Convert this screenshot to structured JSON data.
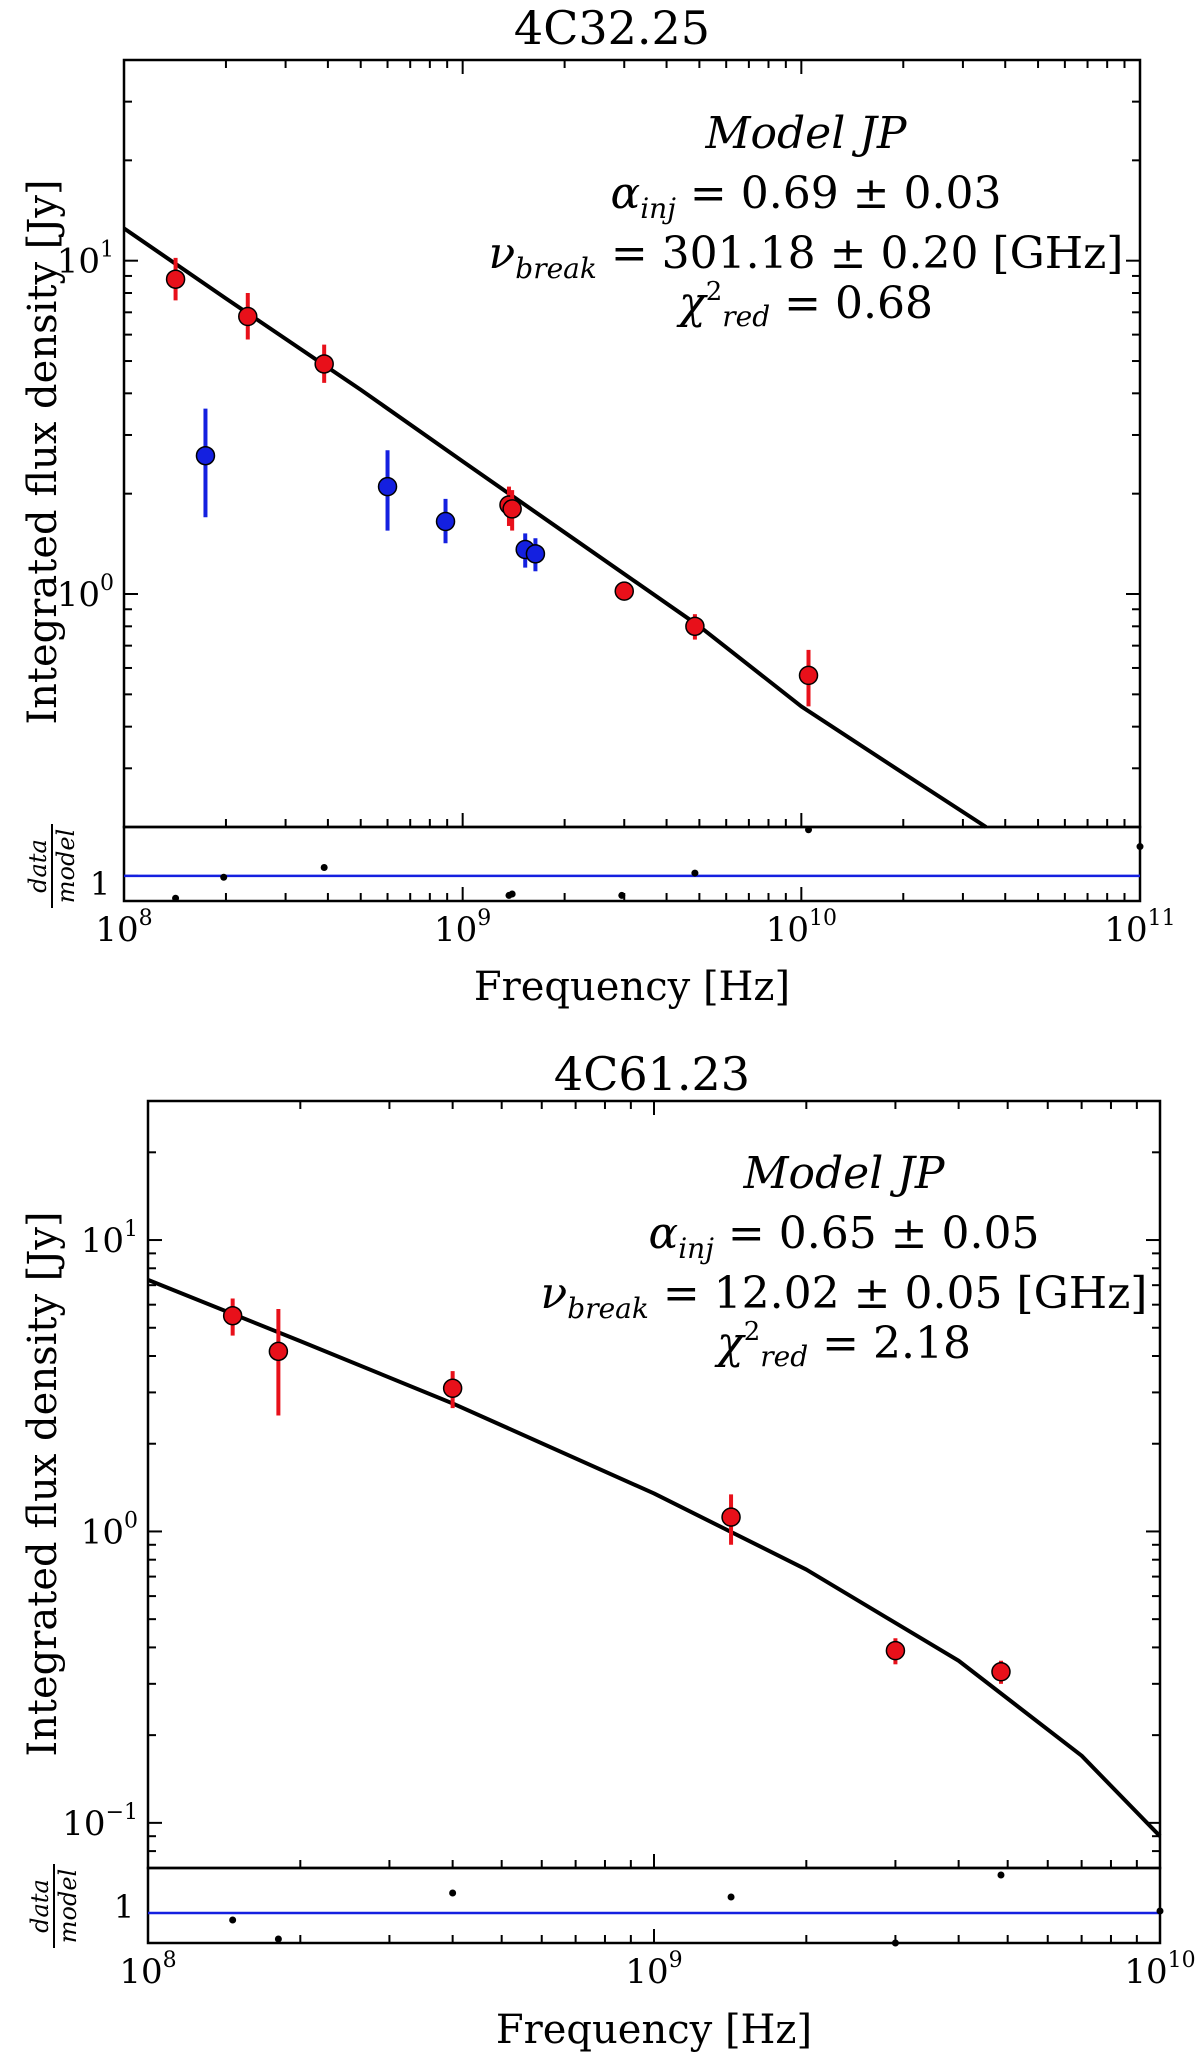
{
  "chart_data": [
    {
      "type": "scatter",
      "title": "4C32.25",
      "xlabel": "Frequency [Hz]",
      "ylabel": "Integrated flux density [Jy]",
      "residual_label": "data/model",
      "residual_label_num": "data",
      "residual_label_den": "model",
      "xscale": "log",
      "yscale": "log",
      "xlim": [
        100000000.0,
        100000000000.0
      ],
      "ylim": [
        0.2,
        40
      ],
      "x_ticks": [
        {
          "value": 100000000.0,
          "base": "10",
          "exp": "8"
        },
        {
          "value": 1000000000.0,
          "base": "10",
          "exp": "9"
        },
        {
          "value": 10000000000.0,
          "base": "10",
          "exp": "10"
        },
        {
          "value": 100000000000.0,
          "base": "10",
          "exp": "11"
        }
      ],
      "y_ticks": [
        {
          "value": 1,
          "base": "10",
          "exp": "0"
        },
        {
          "value": 10,
          "base": "10",
          "exp": "1"
        }
      ],
      "residual_ylim": [
        0.82,
        1.35
      ],
      "residual_tick": {
        "value": 1,
        "label": "1"
      },
      "annotation": {
        "model": "Model JP",
        "alpha_value": "= 0.69 ± 0.03",
        "break_value": "= 301.18 ± 0.20 [GHz]",
        "chi_value": "= 0.68"
      },
      "series": [
        {
          "color": "#e8101a",
          "x": [
            142000000.0,
            232000000.0,
            390000000.0,
            1370000000.0,
            1400000000.0,
            3000000000.0,
            4850000000.0,
            10500000000.0
          ],
          "y": [
            8.8,
            6.8,
            4.9,
            1.85,
            1.8,
            1.02,
            0.8,
            0.57
          ],
          "yerr_low": [
            7.6,
            5.8,
            4.3,
            1.6,
            1.55,
            0.96,
            0.73,
            0.46
          ],
          "yerr_high": [
            10.2,
            8.0,
            5.6,
            2.1,
            2.05,
            1.08,
            0.87,
            0.68
          ]
        },
        {
          "color": "#1420e0",
          "x": [
            174000000.0,
            600000000.0,
            890000000.0,
            1530000000.0,
            1640000000.0
          ],
          "y": [
            2.6,
            2.1,
            1.65,
            1.36,
            1.32
          ],
          "yerr_low": [
            1.7,
            1.55,
            1.42,
            1.2,
            1.17
          ],
          "yerr_high": [
            3.6,
            2.7,
            1.93,
            1.52,
            1.47
          ]
        }
      ],
      "model_curve": {
        "x": [
          100000000.0,
          200000000.0,
          500000000.0,
          1000000000.0,
          2000000000.0,
          5000000000.0,
          10000000000.0,
          20000000000.0,
          47000000000.0
        ],
        "y": [
          12.5,
          7.7,
          4.1,
          2.5,
          1.53,
          0.8,
          0.46,
          0.29,
          0.165
        ]
      },
      "residuals": {
        "x": [
          142000000.0,
          197000000.0,
          390000000.0,
          1370000000.0,
          1400000000.0,
          2950000000.0,
          4850000000.0,
          10500000000.0,
          100000000000.0
        ],
        "y": [
          0.84,
          0.99,
          1.06,
          0.86,
          0.87,
          0.86,
          1.02,
          1.33,
          1.21
        ]
      }
    },
    {
      "type": "scatter",
      "title": "4C61.23",
      "xlabel": "Frequency [Hz]",
      "ylabel": "Integrated flux density [Jy]",
      "residual_label": "data/model",
      "residual_label_num": "data",
      "residual_label_den": "model",
      "xscale": "log",
      "yscale": "log",
      "xlim": [
        100000000.0,
        10000000000.0
      ],
      "ylim": [
        0.07,
        30
      ],
      "x_ticks": [
        {
          "value": 100000000.0,
          "base": "10",
          "exp": "8"
        },
        {
          "value": 1000000000.0,
          "base": "10",
          "exp": "9"
        },
        {
          "value": 10000000000.0,
          "base": "10",
          "exp": "10"
        }
      ],
      "y_ticks": [
        {
          "value": 0.1,
          "base": "10",
          "exp": "−1"
        },
        {
          "value": 1,
          "base": "10",
          "exp": "0"
        },
        {
          "value": 10,
          "base": "10",
          "exp": "1"
        }
      ],
      "residual_ylim": [
        0.7,
        1.45
      ],
      "residual_tick": {
        "value": 1,
        "label": "1"
      },
      "annotation": {
        "model": "Model JP",
        "alpha_value": "= 0.65 ± 0.05",
        "break_value": "= 12.02 ± 0.05 [GHz]",
        "chi_value": "= 2.18"
      },
      "series": [
        {
          "color": "#e8101a",
          "x": [
            147000000.0,
            181000000.0,
            400000000.0,
            1420000000.0,
            3000000000.0,
            4850000000.0
          ],
          "y": [
            5.5,
            4.15,
            3.1,
            1.12,
            0.39,
            0.33
          ],
          "yerr_low": [
            4.7,
            2.5,
            2.65,
            0.9,
            0.35,
            0.3
          ],
          "yerr_high": [
            6.3,
            5.8,
            3.55,
            1.34,
            0.43,
            0.36
          ]
        }
      ],
      "model_curve": {
        "x": [
          100000000.0,
          200000000.0,
          400000000.0,
          1000000000.0,
          2000000000.0,
          4000000000.0,
          7000000000.0,
          10000000000.0
        ],
        "y": [
          7.3,
          4.5,
          2.75,
          1.35,
          0.74,
          0.36,
          0.17,
          0.09
        ]
      },
      "residuals": {
        "x": [
          147000000.0,
          181000000.0,
          400000000.0,
          1420000000.0,
          3000000000.0,
          4850000000.0,
          10000000000.0
        ],
        "y": [
          0.93,
          0.74,
          1.2,
          1.16,
          0.7,
          1.38,
          1.02
        ]
      }
    }
  ]
}
